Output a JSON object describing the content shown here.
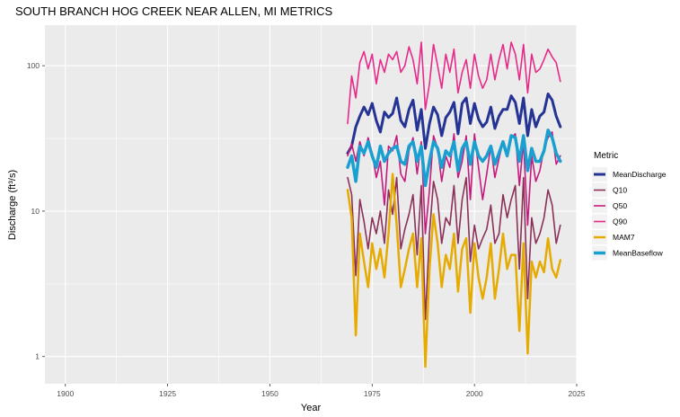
{
  "chart_data": {
    "type": "line",
    "title": "SOUTH BRANCH HOG CREEK NEAR ALLEN, MI  METRICS",
    "xlabel": "Year",
    "ylabel": "Discharge (ft³/s)",
    "x_scale": "linear",
    "y_scale": "log10",
    "xlim": [
      1895,
      2025
    ],
    "ylim": [
      0.65,
      190
    ],
    "x_ticks": [
      1900,
      1925,
      1950,
      1975,
      2000,
      2025
    ],
    "x_tick_labels": [
      "1900",
      "1925",
      "1950",
      "1975",
      "2000",
      "2025"
    ],
    "y_ticks": [
      1,
      10,
      100
    ],
    "y_tick_labels": [
      "1",
      "10",
      "100"
    ],
    "grid": true,
    "legend_position": "right",
    "legend_title": "Metric",
    "x": [
      1969,
      1970,
      1971,
      1972,
      1973,
      1974,
      1975,
      1976,
      1977,
      1978,
      1979,
      1980,
      1981,
      1982,
      1983,
      1984,
      1985,
      1986,
      1987,
      1988,
      1989,
      1990,
      1991,
      1992,
      1993,
      1994,
      1995,
      1996,
      1997,
      1998,
      1999,
      2000,
      2001,
      2002,
      2003,
      2004,
      2005,
      2006,
      2007,
      2008,
      2009,
      2010,
      2011,
      2012,
      2013,
      2014,
      2015,
      2016,
      2017,
      2018,
      2019,
      2020,
      2021
    ],
    "series": [
      {
        "name": "MeanDischarge",
        "color": "#253494",
        "width": 3,
        "values": [
          25,
          28,
          38,
          45,
          52,
          46,
          55,
          42,
          35,
          48,
          44,
          47,
          60,
          42,
          38,
          50,
          58,
          36,
          50,
          27,
          40,
          52,
          46,
          33,
          44,
          48,
          56,
          34,
          55,
          60,
          40,
          55,
          43,
          38,
          41,
          52,
          37,
          45,
          50,
          50,
          62,
          56,
          40,
          60,
          33,
          50,
          38,
          45,
          48,
          64,
          58,
          45,
          38
        ]
      },
      {
        "name": "Q10",
        "color": "#8B3058",
        "width": 1.6,
        "values": [
          17,
          13,
          3.6,
          12,
          8.5,
          5.5,
          9,
          7,
          10,
          6,
          14,
          9.5,
          17,
          5.5,
          7.5,
          9.5,
          13,
          5,
          15,
          1.8,
          7,
          16,
          12,
          6,
          9,
          8,
          15,
          6,
          12,
          17,
          4.5,
          8,
          5.5,
          6.5,
          7.5,
          11,
          6,
          7,
          13,
          9,
          12,
          15,
          4,
          17,
          2.5,
          9,
          6,
          7,
          9,
          14,
          11,
          6,
          8
        ]
      },
      {
        "name": "Q50",
        "color": "#C51B7D",
        "width": 1.6,
        "values": [
          24,
          29,
          22,
          30,
          24,
          32,
          25,
          17,
          22,
          11,
          28,
          26,
          33,
          18,
          16,
          26,
          32,
          18,
          30,
          7,
          14,
          33,
          27,
          16,
          24,
          20,
          34,
          17,
          22,
          33,
          12,
          34,
          20,
          12,
          18,
          28,
          17,
          23,
          30,
          24,
          32,
          34,
          15,
          30,
          8,
          24,
          16,
          19,
          27,
          32,
          35,
          21,
          24
        ]
      },
      {
        "name": "Q90",
        "color": "#E7298A",
        "width": 1.6,
        "values": [
          40,
          85,
          60,
          105,
          125,
          95,
          120,
          75,
          110,
          90,
          120,
          110,
          125,
          90,
          100,
          135,
          110,
          75,
          145,
          50,
          75,
          140,
          100,
          70,
          120,
          90,
          130,
          65,
          90,
          110,
          70,
          120,
          85,
          70,
          80,
          120,
          80,
          110,
          140,
          95,
          145,
          120,
          80,
          140,
          65,
          120,
          90,
          95,
          110,
          130,
          115,
          105,
          78
        ]
      },
      {
        "name": "MAM7",
        "color": "#E6AB02",
        "width": 2.5,
        "values": [
          14,
          9,
          1.4,
          7,
          4.5,
          3,
          6,
          4,
          5.5,
          3.5,
          7,
          18,
          8,
          3,
          4,
          5.5,
          7,
          3,
          6.5,
          0.85,
          4,
          9.5,
          6,
          3,
          5,
          4,
          7,
          2.8,
          5.5,
          6.5,
          2,
          6,
          3.5,
          2.5,
          3.5,
          6,
          2.5,
          4,
          7,
          4,
          5,
          5,
          1.5,
          6,
          1.05,
          4.5,
          3.5,
          4.5,
          3.8,
          6.5,
          4,
          3.5,
          4.6
        ]
      },
      {
        "name": "MeanBaseflow",
        "color": "#1AA0D0",
        "width": 3.5,
        "values": [
          20,
          24,
          16,
          28,
          25,
          30,
          24,
          20,
          28,
          22,
          25,
          27,
          28,
          22,
          21,
          28,
          30,
          22,
          28,
          15,
          22,
          30,
          27,
          20,
          26,
          24,
          30,
          19,
          27,
          30,
          21,
          30,
          24,
          22,
          24,
          28,
          21,
          25,
          30,
          24,
          33,
          32,
          22,
          33,
          19,
          27,
          22,
          22,
          26,
          36,
          32,
          25,
          22
        ]
      }
    ]
  }
}
